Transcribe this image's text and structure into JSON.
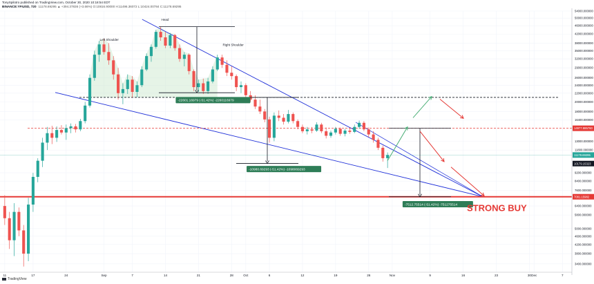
{
  "header": {
    "line1": "TonySpilotro published on TradingView.com, October 30, 2020 10:18:54 EDT",
    "symbol": "BINANCE:YFIUSD, 720",
    "values": "11178.69295 ▲ +394.37836 (+3.66%) O:10816.90000 H:11496.36072 L:10424.00784 C:11178.69295"
  },
  "logo_text": "TradingView",
  "chart_data": {
    "type": "candlestick",
    "title": "",
    "xlabel": "",
    "ylabel": "",
    "ylim": [
      3100,
      54000
    ],
    "y_ticks": [
      {
        "v": 54000,
        "label": "54000.000000"
      },
      {
        "v": 50000,
        "label": "50000.000000"
      },
      {
        "v": 46000,
        "label": "46000.000000"
      },
      {
        "v": 42000,
        "label": "42000.000000"
      },
      {
        "v": 38000,
        "label": "38000.000000"
      },
      {
        "v": 35000,
        "label": "35000.000000"
      },
      {
        "v": 32000,
        "label": "32000.000000"
      },
      {
        "v": 29000,
        "label": "29000.000000"
      },
      {
        "v": 26000,
        "label": "26000.000000"
      },
      {
        "v": 24000,
        "label": "24000.000000"
      },
      {
        "v": 22000,
        "label": "22000.000000"
      },
      {
        "v": 20000,
        "label": "20000.000000"
      },
      {
        "v": 18000,
        "label": "18000.000000"
      },
      {
        "v": 16400,
        "label": "16400.000000"
      },
      {
        "v": 13000,
        "label": "13000.000000"
      },
      {
        "v": 11800,
        "label": "11800.000000"
      },
      {
        "v": 9200,
        "label": "9200.000000"
      },
      {
        "v": 8400,
        "label": "8400.000000"
      },
      {
        "v": 7600,
        "label": "7600.000000"
      },
      {
        "v": 6400,
        "label": "6400.000000"
      },
      {
        "v": 5800,
        "label": "5800.000000"
      },
      {
        "v": 5000,
        "label": "5000.000000"
      },
      {
        "v": 4600,
        "label": "4600.000000"
      },
      {
        "v": 4200,
        "label": "4200.000000"
      },
      {
        "v": 3800,
        "label": "3800.000000"
      },
      {
        "v": 3400,
        "label": "3400.000000"
      }
    ],
    "x_ticks": [
      {
        "day": 0,
        "label": "11"
      },
      {
        "day": 6,
        "label": "17"
      },
      {
        "day": 13,
        "label": "24"
      },
      {
        "day": 21,
        "label": "Sep"
      },
      {
        "day": 27,
        "label": "7"
      },
      {
        "day": 34,
        "label": "14"
      },
      {
        "day": 41,
        "label": "21"
      },
      {
        "day": 48,
        "label": "28"
      },
      {
        "day": 51,
        "label": "Oct"
      },
      {
        "day": 56,
        "label": "6"
      },
      {
        "day": 63,
        "label": "12"
      },
      {
        "day": 70,
        "label": "19"
      },
      {
        "day": 77,
        "label": "26"
      },
      {
        "day": 82,
        "label": "Nov"
      },
      {
        "day": 90,
        "label": "9"
      },
      {
        "day": 97,
        "label": "16"
      },
      {
        "day": 104,
        "label": "23"
      },
      {
        "day": 111,
        "label": "30"
      },
      {
        "day": 112,
        "label": "Dec"
      },
      {
        "day": 118,
        "label": "7"
      }
    ],
    "xlim_days": [
      -1,
      120
    ],
    "price_labels": [
      {
        "v": 14977.86,
        "label": "14977.885760",
        "color": "#e53935"
      },
      {
        "v": 11178.69,
        "label": "11178.69295",
        "color": "#26a69a"
      },
      {
        "v": 10179.15,
        "label": "10179.15323",
        "color": "#131722"
      },
      {
        "v": 7081.15,
        "label": "7081.15982",
        "color": "#e53935"
      }
    ],
    "pattern_labels": [
      {
        "text": "Left Shoulder",
        "day": 21,
        "v": 39000
      },
      {
        "text": "Head",
        "day": 34,
        "v": 48500
      },
      {
        "text": "Right Shoulder",
        "day": 47,
        "v": 36800
      }
    ],
    "measurements": [
      {
        "text": "-22601.16979 (-51.42%) -2260116979",
        "day": 41,
        "v": 20300
      },
      {
        "text": "-10980.69293 (-51.42%) -1098069293",
        "day": 56,
        "v": 9550
      },
      {
        "text": "-7512.75514 (-51.42%) -751275514",
        "day": 89,
        "v": 6500
      }
    ],
    "annotation": {
      "text": "STRONG BUY",
      "color": "#e53935"
    },
    "candles": [
      {
        "d": 0,
        "o": 6400,
        "h": 7200,
        "l": 5200,
        "c": 5600
      },
      {
        "d": 1,
        "o": 5600,
        "h": 6000,
        "l": 4000,
        "c": 4400
      },
      {
        "d": 2,
        "o": 4400,
        "h": 6600,
        "l": 3700,
        "c": 6000
      },
      {
        "d": 3,
        "o": 6000,
        "h": 6300,
        "l": 4600,
        "c": 4900
      },
      {
        "d": 4,
        "o": 4900,
        "h": 5200,
        "l": 3300,
        "c": 3800
      },
      {
        "d": 5,
        "o": 3800,
        "h": 7000,
        "l": 3500,
        "c": 6500
      },
      {
        "d": 6,
        "o": 6500,
        "h": 9200,
        "l": 6000,
        "c": 8800
      },
      {
        "d": 7,
        "o": 8800,
        "h": 10800,
        "l": 8300,
        "c": 10500
      },
      {
        "d": 8,
        "o": 10500,
        "h": 13500,
        "l": 9800,
        "c": 12800
      },
      {
        "d": 9,
        "o": 12800,
        "h": 15200,
        "l": 11800,
        "c": 14200
      },
      {
        "d": 10,
        "o": 14200,
        "h": 15400,
        "l": 12600,
        "c": 13500
      },
      {
        "d": 11,
        "o": 13500,
        "h": 15300,
        "l": 12900,
        "c": 14700
      },
      {
        "d": 12,
        "o": 14700,
        "h": 15500,
        "l": 14000,
        "c": 14300
      },
      {
        "d": 13,
        "o": 14300,
        "h": 15600,
        "l": 13200,
        "c": 15000
      },
      {
        "d": 14,
        "o": 15000,
        "h": 15800,
        "l": 14200,
        "c": 15300
      },
      {
        "d": 15,
        "o": 15300,
        "h": 15700,
        "l": 14300,
        "c": 14800
      },
      {
        "d": 16,
        "o": 14800,
        "h": 16600,
        "l": 14500,
        "c": 16200
      },
      {
        "d": 17,
        "o": 16200,
        "h": 20000,
        "l": 15800,
        "c": 19200
      },
      {
        "d": 18,
        "o": 19200,
        "h": 27000,
        "l": 18800,
        "c": 26000
      },
      {
        "d": 19,
        "o": 26000,
        "h": 35000,
        "l": 25200,
        "c": 33500
      },
      {
        "d": 20,
        "o": 33500,
        "h": 39000,
        "l": 31000,
        "c": 37500
      },
      {
        "d": 21,
        "o": 37500,
        "h": 40000,
        "l": 33500,
        "c": 34500
      },
      {
        "d": 22,
        "o": 34500,
        "h": 38000,
        "l": 30000,
        "c": 31500
      },
      {
        "d": 23,
        "o": 31500,
        "h": 33000,
        "l": 25500,
        "c": 27000
      },
      {
        "d": 24,
        "o": 27000,
        "h": 29000,
        "l": 20500,
        "c": 22000
      },
      {
        "d": 25,
        "o": 22000,
        "h": 24500,
        "l": 19500,
        "c": 23000
      },
      {
        "d": 26,
        "o": 23000,
        "h": 27000,
        "l": 21800,
        "c": 25500
      },
      {
        "d": 27,
        "o": 25500,
        "h": 26500,
        "l": 21000,
        "c": 22300
      },
      {
        "d": 28,
        "o": 22300,
        "h": 25000,
        "l": 21000,
        "c": 24000
      },
      {
        "d": 29,
        "o": 24000,
        "h": 29500,
        "l": 23500,
        "c": 28500
      },
      {
        "d": 30,
        "o": 28500,
        "h": 34000,
        "l": 28000,
        "c": 33000
      },
      {
        "d": 31,
        "o": 33000,
        "h": 37500,
        "l": 31000,
        "c": 36500
      },
      {
        "d": 32,
        "o": 36500,
        "h": 44000,
        "l": 35800,
        "c": 43000
      },
      {
        "d": 33,
        "o": 43000,
        "h": 45500,
        "l": 39000,
        "c": 40500
      },
      {
        "d": 34,
        "o": 40500,
        "h": 43000,
        "l": 36000,
        "c": 37000
      },
      {
        "d": 35,
        "o": 37000,
        "h": 42500,
        "l": 36000,
        "c": 41500
      },
      {
        "d": 36,
        "o": 41500,
        "h": 42000,
        "l": 35000,
        "c": 36000
      },
      {
        "d": 37,
        "o": 36000,
        "h": 37500,
        "l": 31000,
        "c": 32000
      },
      {
        "d": 38,
        "o": 32000,
        "h": 34500,
        "l": 29500,
        "c": 33500
      },
      {
        "d": 39,
        "o": 33500,
        "h": 34000,
        "l": 27000,
        "c": 28000
      },
      {
        "d": 40,
        "o": 28000,
        "h": 28500,
        "l": 22500,
        "c": 23500
      },
      {
        "d": 41,
        "o": 23500,
        "h": 25500,
        "l": 22300,
        "c": 24500
      },
      {
        "d": 42,
        "o": 24500,
        "h": 25800,
        "l": 21800,
        "c": 22500
      },
      {
        "d": 43,
        "o": 22500,
        "h": 26000,
        "l": 21800,
        "c": 25000
      },
      {
        "d": 44,
        "o": 25000,
        "h": 29500,
        "l": 24500,
        "c": 28500
      },
      {
        "d": 45,
        "o": 28500,
        "h": 33500,
        "l": 28000,
        "c": 32500
      },
      {
        "d": 46,
        "o": 32500,
        "h": 33500,
        "l": 29000,
        "c": 30000
      },
      {
        "d": 47,
        "o": 30000,
        "h": 31500,
        "l": 26500,
        "c": 27500
      },
      {
        "d": 48,
        "o": 27500,
        "h": 29500,
        "l": 25500,
        "c": 26500
      },
      {
        "d": 49,
        "o": 26500,
        "h": 27000,
        "l": 22500,
        "c": 23500
      },
      {
        "d": 50,
        "o": 23500,
        "h": 25000,
        "l": 22000,
        "c": 24000
      },
      {
        "d": 51,
        "o": 24000,
        "h": 24500,
        "l": 21000,
        "c": 21500
      },
      {
        "d": 52,
        "o": 21500,
        "h": 22500,
        "l": 20000,
        "c": 20500
      },
      {
        "d": 53,
        "o": 20500,
        "h": 21500,
        "l": 18500,
        "c": 19000
      },
      {
        "d": 54,
        "o": 19000,
        "h": 20500,
        "l": 17500,
        "c": 18000
      },
      {
        "d": 55,
        "o": 18000,
        "h": 18500,
        "l": 16000,
        "c": 16500
      },
      {
        "d": 56,
        "o": 16500,
        "h": 17000,
        "l": 12800,
        "c": 13500
      },
      {
        "d": 57,
        "o": 13500,
        "h": 17800,
        "l": 13000,
        "c": 17200
      },
      {
        "d": 58,
        "o": 17200,
        "h": 18200,
        "l": 16200,
        "c": 16800
      },
      {
        "d": 59,
        "o": 16800,
        "h": 17500,
        "l": 15600,
        "c": 16100
      },
      {
        "d": 60,
        "o": 16100,
        "h": 18300,
        "l": 15800,
        "c": 17500
      },
      {
        "d": 61,
        "o": 17500,
        "h": 17800,
        "l": 15800,
        "c": 16200
      },
      {
        "d": 62,
        "o": 16200,
        "h": 16500,
        "l": 14800,
        "c": 15200
      },
      {
        "d": 63,
        "o": 15200,
        "h": 15600,
        "l": 14200,
        "c": 14500
      },
      {
        "d": 64,
        "o": 14500,
        "h": 15200,
        "l": 14000,
        "c": 14800
      },
      {
        "d": 65,
        "o": 14800,
        "h": 15200,
        "l": 14200,
        "c": 14600
      },
      {
        "d": 66,
        "o": 14600,
        "h": 16000,
        "l": 14400,
        "c": 15600
      },
      {
        "d": 67,
        "o": 15600,
        "h": 15900,
        "l": 14200,
        "c": 14500
      },
      {
        "d": 68,
        "o": 14500,
        "h": 15100,
        "l": 13400,
        "c": 13800
      },
      {
        "d": 69,
        "o": 13800,
        "h": 14600,
        "l": 13500,
        "c": 14300
      },
      {
        "d": 70,
        "o": 14300,
        "h": 15200,
        "l": 14000,
        "c": 14900
      },
      {
        "d": 71,
        "o": 14900,
        "h": 15100,
        "l": 13800,
        "c": 14100
      },
      {
        "d": 72,
        "o": 14100,
        "h": 14900,
        "l": 13700,
        "c": 14600
      },
      {
        "d": 73,
        "o": 14600,
        "h": 15000,
        "l": 14100,
        "c": 14400
      },
      {
        "d": 74,
        "o": 14400,
        "h": 15600,
        "l": 14200,
        "c": 15200
      },
      {
        "d": 75,
        "o": 15200,
        "h": 16300,
        "l": 14900,
        "c": 15900
      },
      {
        "d": 76,
        "o": 15900,
        "h": 16200,
        "l": 14500,
        "c": 14800
      },
      {
        "d": 77,
        "o": 14800,
        "h": 15100,
        "l": 13600,
        "c": 14000
      },
      {
        "d": 78,
        "o": 14000,
        "h": 14500,
        "l": 12800,
        "c": 13200
      },
      {
        "d": 79,
        "o": 13200,
        "h": 13500,
        "l": 11800,
        "c": 12100
      },
      {
        "d": 80,
        "o": 12100,
        "h": 12400,
        "l": 10400,
        "c": 10800
      },
      {
        "d": 81,
        "o": 10800,
        "h": 11500,
        "l": 9700,
        "c": 11178.69
      }
    ]
  }
}
